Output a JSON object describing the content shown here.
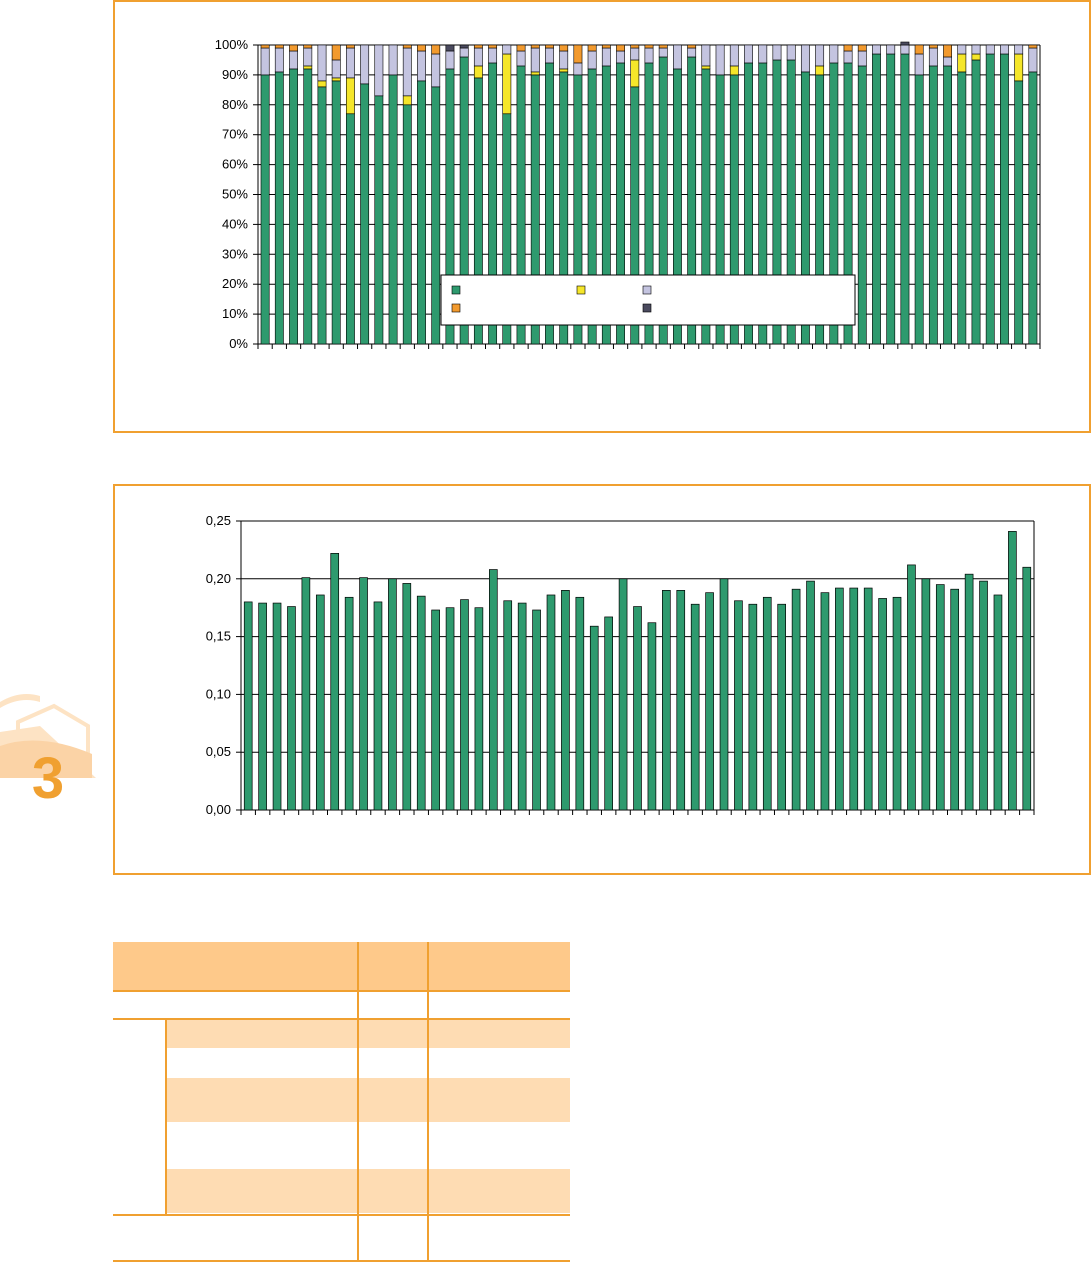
{
  "colors": {
    "frame": "#f0a030",
    "green": "#2e9a6e",
    "yellow": "#f5e62a",
    "lavender": "#c4c4e0",
    "orange": "#f29a2e",
    "dark": "#4a4a5e",
    "table_header": "#fec98a",
    "table_band": "#fedcb3"
  },
  "badge": {
    "number": "3",
    "icon": "chapter-tab-icon"
  },
  "chart_data": [
    {
      "type": "stacked-bar-percent",
      "ylim": [
        0,
        100
      ],
      "yticks": [
        "0%",
        "10%",
        "20%",
        "30%",
        "40%",
        "50%",
        "60%",
        "70%",
        "80%",
        "90%",
        "100%"
      ],
      "grid": true,
      "legend": {
        "placement": "bottom-center",
        "swatches": [
          "green",
          "yellow",
          "lavender",
          "orange",
          "dark"
        ]
      },
      "series": [
        {
          "color": "green",
          "values": [
            90,
            91,
            92,
            92,
            86,
            88,
            77,
            87,
            83,
            90,
            80,
            88,
            86,
            92,
            96,
            89,
            94,
            77,
            93,
            90,
            94,
            91,
            90,
            92,
            93,
            94,
            86,
            94,
            96,
            92,
            96,
            92,
            90,
            90,
            94,
            94,
            95,
            95,
            91,
            90,
            94,
            94,
            93,
            97,
            97,
            97,
            90,
            93,
            93,
            91,
            95,
            97,
            97,
            88,
            91
          ]
        },
        {
          "color": "yellow",
          "values": [
            0,
            0,
            0,
            1,
            2,
            1,
            12,
            0,
            0,
            0,
            3,
            0,
            0,
            0,
            0,
            4,
            0,
            20,
            0,
            1,
            0,
            1,
            0,
            0,
            0,
            0,
            9,
            0,
            0,
            0,
            0,
            1,
            0,
            3,
            0,
            0,
            0,
            0,
            0,
            3,
            0,
            0,
            0,
            0,
            0,
            0,
            0,
            0,
            0,
            6,
            2,
            0,
            0,
            9,
            0
          ]
        },
        {
          "color": "lavender",
          "values": [
            9,
            8,
            6,
            6,
            12,
            6,
            10,
            13,
            17,
            10,
            16,
            10,
            11,
            6,
            3,
            6,
            5,
            3,
            5,
            8,
            5,
            6,
            4,
            6,
            6,
            4,
            4,
            5,
            3,
            8,
            3,
            7,
            10,
            7,
            6,
            6,
            5,
            5,
            9,
            7,
            6,
            4,
            5,
            3,
            3,
            3,
            7,
            6,
            3,
            3,
            3,
            3,
            3,
            3,
            8
          ]
        },
        {
          "color": "orange",
          "values": [
            1,
            1,
            2,
            1,
            0,
            5,
            1,
            0,
            0,
            0,
            1,
            2,
            3,
            0,
            0,
            1,
            1,
            0,
            2,
            1,
            1,
            2,
            6,
            2,
            1,
            2,
            1,
            1,
            1,
            0,
            1,
            0,
            0,
            0,
            0,
            0,
            0,
            0,
            0,
            0,
            0,
            2,
            2,
            0,
            0,
            0,
            3,
            1,
            4,
            0,
            0,
            0,
            0,
            0,
            1
          ]
        },
        {
          "color": "dark",
          "values": [
            0,
            0,
            0,
            0,
            0,
            0,
            0,
            0,
            0,
            0,
            0,
            0,
            0,
            2,
            1,
            0,
            0,
            0,
            0,
            0,
            0,
            0,
            0,
            0,
            0,
            0,
            0,
            0,
            0,
            0,
            0,
            0,
            0,
            0,
            0,
            0,
            0,
            0,
            0,
            0,
            0,
            0,
            0,
            0,
            0,
            1,
            0,
            0,
            0,
            0,
            0,
            0,
            0,
            0,
            0
          ]
        }
      ]
    },
    {
      "type": "bar",
      "ylim": [
        0,
        0.25
      ],
      "yticks": [
        "0,00",
        "0,05",
        "0,10",
        "0,15",
        "0,20",
        "0,25"
      ],
      "grid": true,
      "values": [
        0.18,
        0.179,
        0.179,
        0.176,
        0.201,
        0.186,
        0.222,
        0.184,
        0.201,
        0.18,
        0.2,
        0.196,
        0.185,
        0.173,
        0.175,
        0.182,
        0.175,
        0.208,
        0.181,
        0.179,
        0.173,
        0.186,
        0.19,
        0.184,
        0.159,
        0.167,
        0.2,
        0.176,
        0.162,
        0.19,
        0.19,
        0.178,
        0.188,
        0.2,
        0.181,
        0.178,
        0.184,
        0.178,
        0.191,
        0.198,
        0.188,
        0.192,
        0.192,
        0.192,
        0.183,
        0.184,
        0.212,
        0.2,
        0.195,
        0.191,
        0.204,
        0.198,
        0.186,
        0.241,
        0.21
      ]
    }
  ]
}
